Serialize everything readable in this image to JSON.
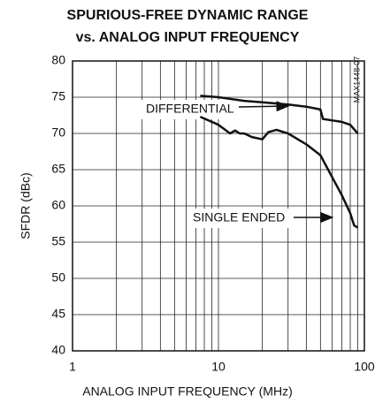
{
  "chart_data": {
    "type": "line",
    "title": [
      "SPURIOUS-FREE DYNAMIC RANGE",
      "vs. ANALOG INPUT FREQUENCY"
    ],
    "xlabel": "ANALOG INPUT FREQUENCY (MHz)",
    "ylabel": "SFDR (dBc)",
    "note": "MAX1448-07",
    "xscale": "log",
    "xlim": [
      1,
      100
    ],
    "xticks": [
      1,
      10,
      100
    ],
    "xminor": [
      2,
      3,
      4,
      5,
      6,
      7,
      8,
      9,
      20,
      30,
      40,
      50,
      60,
      70,
      80,
      90
    ],
    "ylim": [
      40,
      80
    ],
    "yticks": [
      40,
      45,
      50,
      55,
      60,
      65,
      70,
      75,
      80
    ],
    "grid": true,
    "annotations": [
      "DIFFERENTIAL",
      "SINGLE ENDED"
    ],
    "series": [
      {
        "name": "DIFFERENTIAL",
        "color": "#111111",
        "x": [
          7.5,
          10,
          15,
          20,
          30,
          40,
          50,
          52,
          60,
          70,
          80,
          90
        ],
        "values": [
          75.2,
          75,
          74.5,
          74.3,
          74,
          73.7,
          73.3,
          72,
          71.8,
          71.6,
          71.2,
          70
        ]
      },
      {
        "name": "SINGLE ENDED",
        "color": "#111111",
        "x": [
          7.5,
          10,
          12,
          13,
          14,
          15,
          17,
          20,
          22,
          25,
          30,
          40,
          50,
          60,
          70,
          80,
          85,
          90
        ],
        "values": [
          72.3,
          71.2,
          70,
          70.4,
          70,
          70,
          69.5,
          69.2,
          70.2,
          70.5,
          70,
          68.5,
          67,
          64,
          61.5,
          59,
          57.3,
          57
        ]
      }
    ]
  }
}
